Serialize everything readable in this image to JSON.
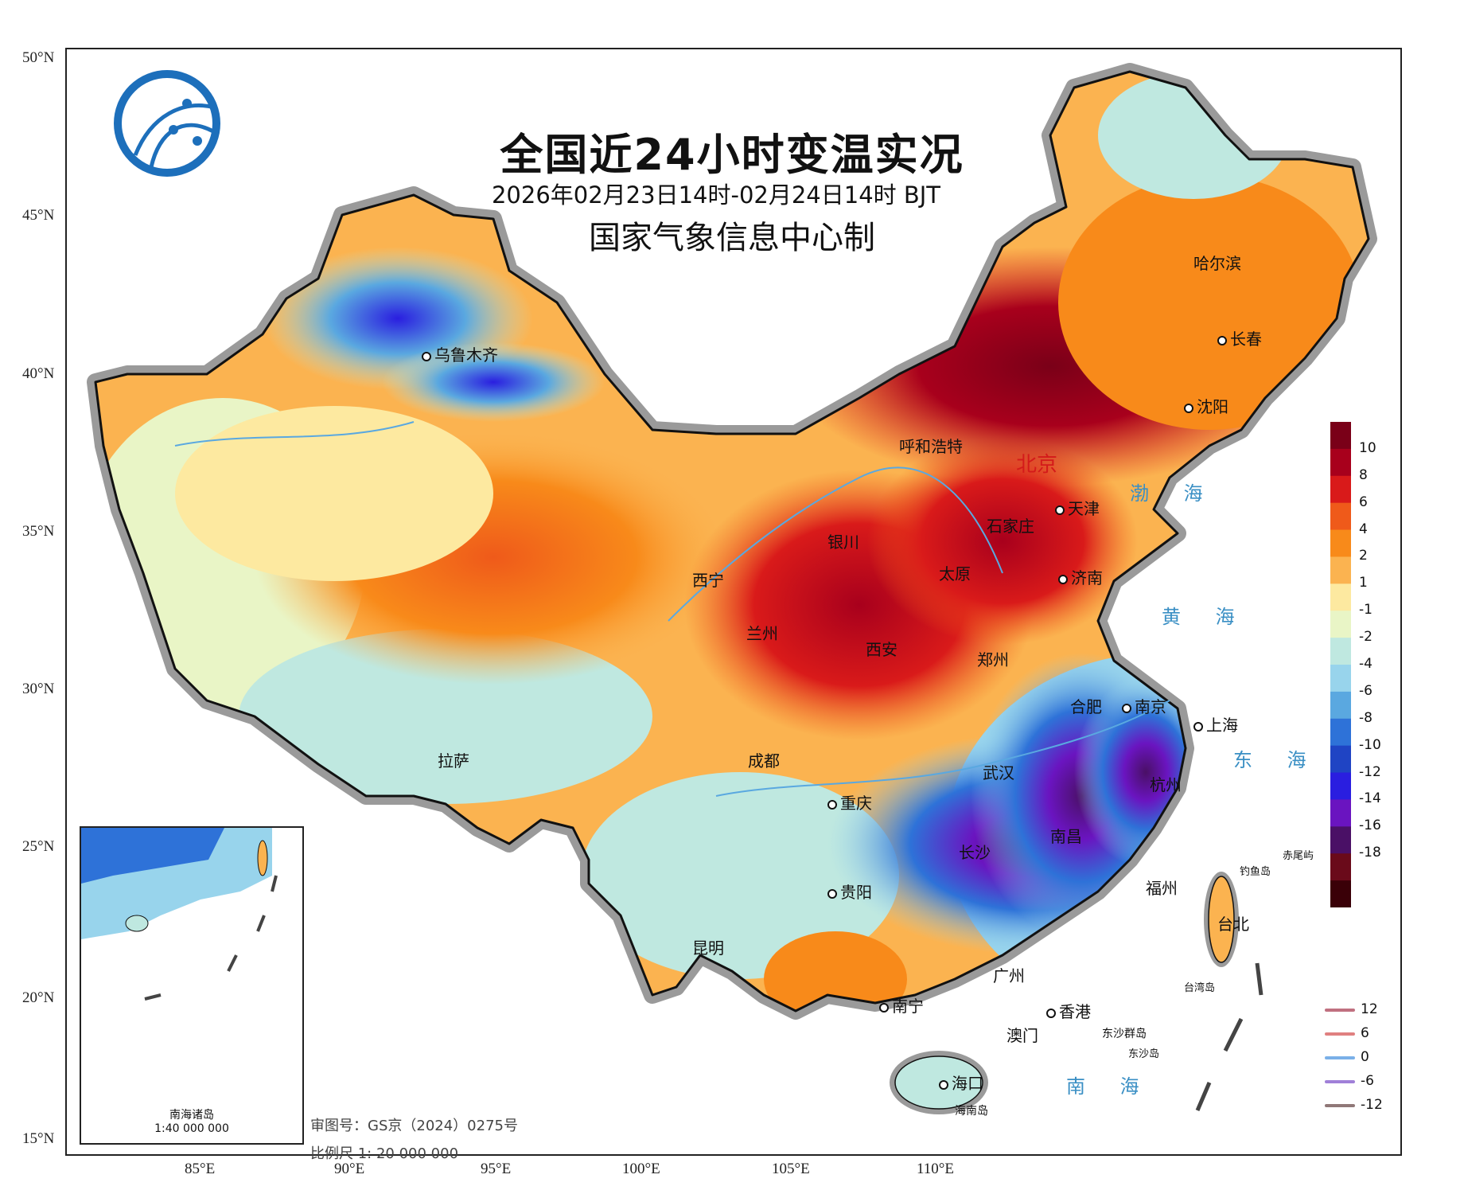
{
  "title": "全国近24小时变温实况",
  "subtitle": "2026年02月23日14时-02月24日14时 BJT",
  "producer": "国家气象信息中心制",
  "latitude_labels": [
    "50°N",
    "45°N",
    "40°N",
    "35°N",
    "30°N",
    "25°N",
    "20°N",
    "15°N"
  ],
  "longitude_labels": [
    "85°E",
    "90°E",
    "95°E",
    "100°E",
    "105°E",
    "110°E"
  ],
  "colorbar": {
    "labels": [
      "10",
      "8",
      "6",
      "4",
      "2",
      "1",
      "-1",
      "-2",
      "-4",
      "-6",
      "-8",
      "-10",
      "-12",
      "-14",
      "-16",
      "-18"
    ],
    "colors": [
      "#7a0018",
      "#a8001c",
      "#d91a1a",
      "#ef5a1a",
      "#f88a1a",
      "#fbb350",
      "#fde9a0",
      "#e9f5c6",
      "#bfe8e0",
      "#98d4ec",
      "#5aa8e0",
      "#2e72d8",
      "#1f44c4",
      "#2a1ee0",
      "#6a14c0",
      "#4a1066",
      "#6a0a1a",
      "#3a0008"
    ]
  },
  "line_legend": [
    {
      "label": "12",
      "color": "#c07080"
    },
    {
      "label": "6",
      "color": "#e08080"
    },
    {
      "label": "0",
      "color": "#7ab0e8"
    },
    {
      "label": "-6",
      "color": "#a080d8"
    },
    {
      "label": "-12",
      "color": "#907878"
    }
  ],
  "cities": {
    "beijing": "北京",
    "tianjin": "天津",
    "shijiazhuang": "石家庄",
    "taiyuan": "太原",
    "jinan": "济南",
    "zhengzhou": "郑州",
    "xian": "西安",
    "lanzhou": "兰州",
    "xining": "西宁",
    "yinchuan": "银川",
    "huhehaote": "呼和浩特",
    "haerbin": "哈尔滨",
    "changchun": "长春",
    "shenyang": "沈阳",
    "wulumuqi": "乌鲁木齐",
    "lasa": "拉萨",
    "chengdu": "成都",
    "chongqing": "重庆",
    "wuhan": "武汉",
    "hefei": "合肥",
    "nanjing": "南京",
    "shanghai": "上海",
    "hangzhou": "杭州",
    "nanchang": "南昌",
    "changsha": "长沙",
    "guiyang": "贵阳",
    "kunming": "昆明",
    "fuzhou": "福州",
    "taibei": "台北",
    "guangzhou": "广州",
    "nanning": "南宁",
    "xianggang": "香港",
    "aomen": "澳门",
    "haikou": "海口"
  },
  "seas": {
    "bohai": "渤 海",
    "huanghai": "黄 海",
    "donghai": "东 海",
    "nanhai": "南 海"
  },
  "islands": {
    "chiweiyu": "赤尾屿",
    "diaoyudao": "钓鱼岛",
    "taiwandao": "台湾岛",
    "dongsha": "东沙群岛",
    "dongshadao": "东沙岛",
    "hainandao": "海南岛"
  },
  "inset": {
    "title": "南海诸岛",
    "scale": "1:40 000 000"
  },
  "map_info": {
    "approval": "审图号：GS京（2024）0275号",
    "scale": "比例尺 1: 20 000 000"
  }
}
